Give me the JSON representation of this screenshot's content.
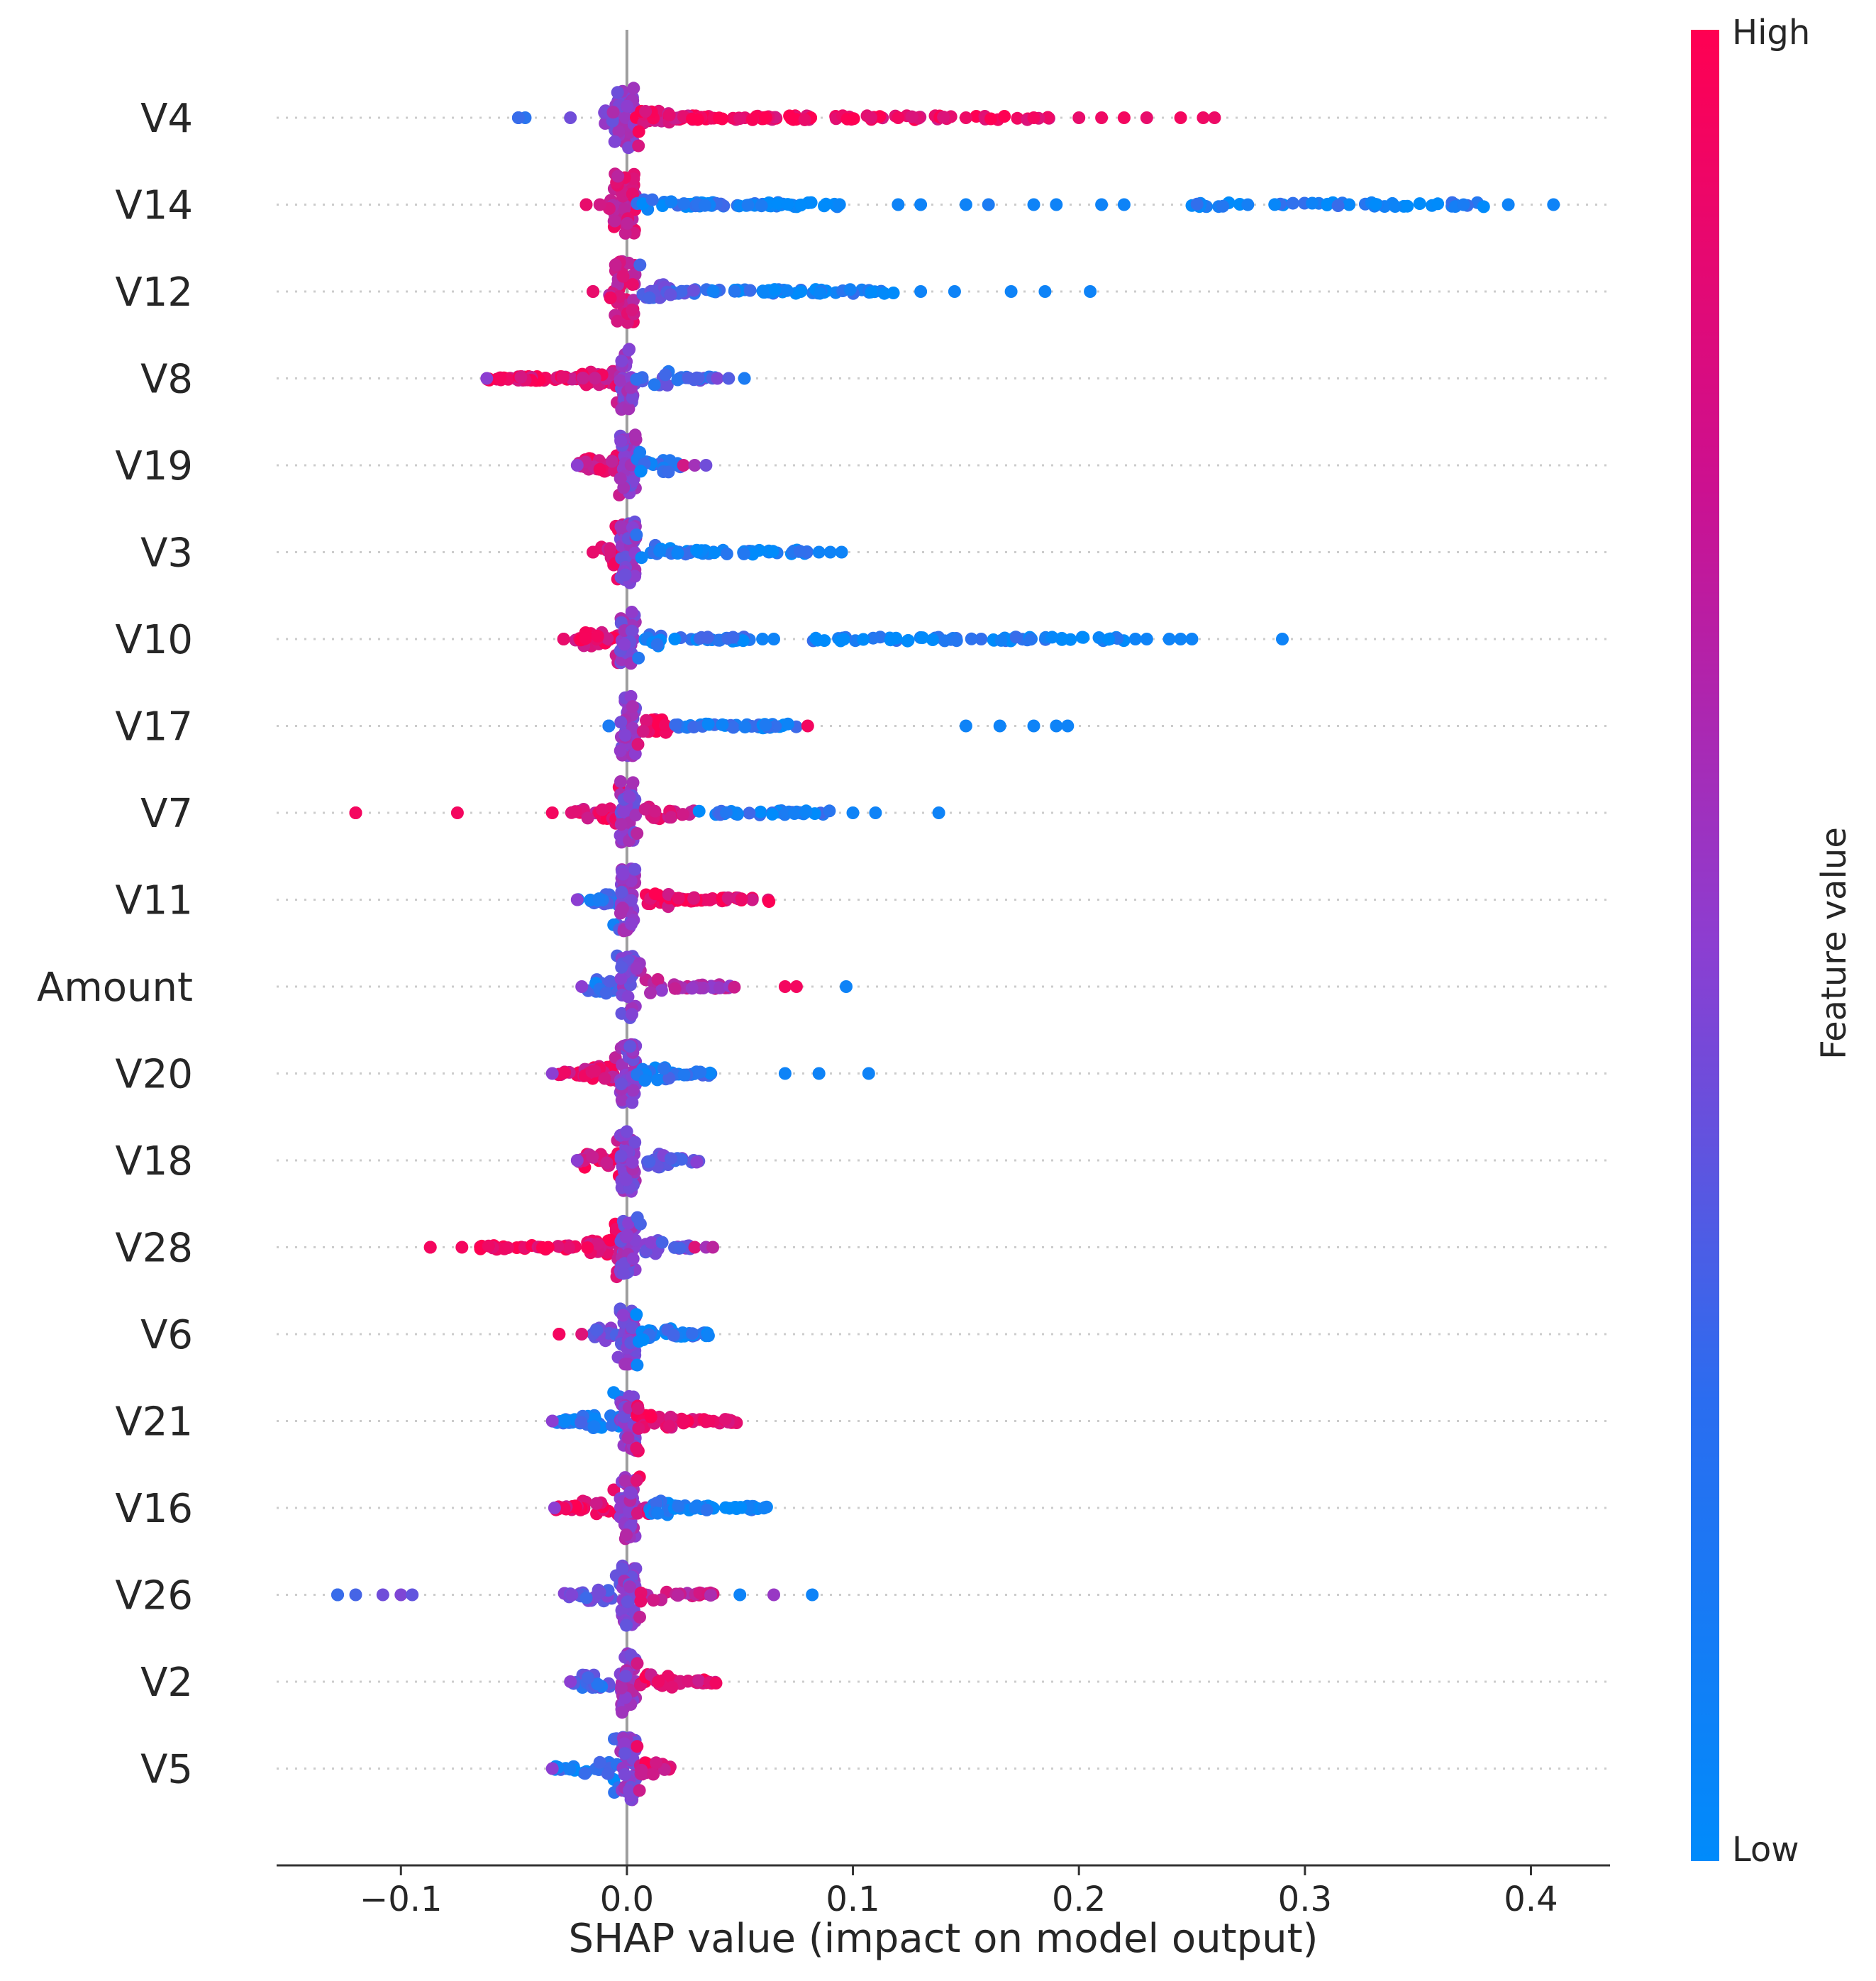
{
  "chart_data": {
    "type": "scatter",
    "subtype": "shap-beeswarm",
    "xlabel": "SHAP value (impact on model output)",
    "xlim": [
      -0.155,
      0.435
    ],
    "xticks": [
      -0.1,
      0.0,
      0.1,
      0.2,
      0.3,
      0.4
    ],
    "xtick_labels": [
      "−0.1",
      "0.0",
      "0.1",
      "0.2",
      "0.3",
      "0.4"
    ],
    "colorbar": {
      "label": "Feature value",
      "high_label": "High",
      "low_label": "Low",
      "high_color": "#ff0052",
      "low_color": "#008bfb"
    },
    "features": [
      {
        "name": "V4",
        "min": -0.048,
        "max": 0.26,
        "far": [
          [
            -0.048,
            0.2
          ],
          [
            -0.045,
            0.15
          ],
          [
            -0.025,
            0.4
          ],
          [
            0.12,
            0.95
          ],
          [
            0.15,
            0.92
          ],
          [
            0.18,
            0.95
          ],
          [
            0.2,
            0.9
          ],
          [
            0.21,
            0.93
          ],
          [
            0.22,
            0.95
          ],
          [
            0.23,
            0.9
          ],
          [
            0.245,
            0.95
          ],
          [
            0.255,
            0.93
          ],
          [
            0.26,
            0.92
          ]
        ],
        "segments": [
          [
            -0.01,
            0.004,
            0.5,
            60
          ],
          [
            0.004,
            0.04,
            0.9,
            45
          ],
          [
            0.04,
            0.1,
            0.95,
            40
          ],
          [
            0.1,
            0.19,
            0.93,
            35
          ]
        ]
      },
      {
        "name": "V14",
        "min": -0.018,
        "max": 0.41,
        "far": [
          [
            -0.018,
            0.9
          ],
          [
            -0.012,
            0.8
          ],
          [
            0.12,
            0.05
          ],
          [
            0.13,
            0.05
          ],
          [
            0.15,
            0.05
          ],
          [
            0.16,
            0.1
          ],
          [
            0.18,
            0.05
          ],
          [
            0.19,
            0.05
          ],
          [
            0.21,
            0.05
          ],
          [
            0.22,
            0.05
          ],
          [
            0.39,
            0.05
          ],
          [
            0.41,
            0.05
          ]
        ],
        "segments": [
          [
            -0.008,
            0.004,
            0.8,
            60
          ],
          [
            0.004,
            0.07,
            0.08,
            55
          ],
          [
            0.07,
            0.1,
            0.05,
            15
          ],
          [
            0.25,
            0.38,
            0.05,
            45
          ]
        ]
      },
      {
        "name": "V12",
        "min": -0.015,
        "max": 0.205,
        "far": [
          [
            -0.015,
            0.9
          ],
          [
            0.13,
            0.05
          ],
          [
            0.145,
            0.05
          ],
          [
            0.17,
            0.05
          ],
          [
            0.185,
            0.05
          ],
          [
            0.205,
            0.05
          ]
        ],
        "segments": [
          [
            -0.008,
            0.004,
            0.8,
            50
          ],
          [
            0.004,
            0.035,
            0.3,
            25
          ],
          [
            0.035,
            0.07,
            0.08,
            25
          ],
          [
            0.07,
            0.12,
            0.05,
            25
          ]
        ]
      },
      {
        "name": "V8",
        "min": -0.062,
        "max": 0.052,
        "far": [
          [
            0.04,
            0.45
          ],
          [
            0.045,
            0.3
          ],
          [
            0.052,
            0.1
          ]
        ],
        "segments": [
          [
            -0.062,
            -0.03,
            0.92,
            40
          ],
          [
            -0.03,
            -0.003,
            0.85,
            40
          ],
          [
            -0.003,
            0.004,
            0.5,
            40
          ],
          [
            0.004,
            0.04,
            0.25,
            25
          ]
        ]
      },
      {
        "name": "V19",
        "min": -0.022,
        "max": 0.037,
        "far": [
          [
            0.025,
            0.8
          ],
          [
            0.03,
            0.6
          ],
          [
            0.035,
            0.4
          ]
        ],
        "segments": [
          [
            -0.022,
            -0.003,
            0.85,
            25
          ],
          [
            -0.003,
            0.004,
            0.5,
            40
          ],
          [
            0.004,
            0.025,
            0.15,
            20
          ]
        ]
      },
      {
        "name": "V3",
        "min": -0.015,
        "max": 0.095,
        "far": [
          [
            -0.015,
            0.9
          ],
          [
            0.085,
            0.05
          ],
          [
            0.09,
            0.05
          ],
          [
            0.095,
            0.05
          ]
        ],
        "segments": [
          [
            -0.012,
            0.0,
            0.85,
            25
          ],
          [
            -0.003,
            0.004,
            0.5,
            40
          ],
          [
            0.004,
            0.08,
            0.08,
            55
          ]
        ]
      },
      {
        "name": "V10",
        "min": -0.028,
        "max": 0.29,
        "far": [
          [
            -0.028,
            0.9
          ],
          [
            0.06,
            0.05
          ],
          [
            0.065,
            0.05
          ],
          [
            0.225,
            0.05
          ],
          [
            0.23,
            0.05
          ],
          [
            0.24,
            0.05
          ],
          [
            0.245,
            0.05
          ],
          [
            0.25,
            0.05
          ],
          [
            0.29,
            0.05
          ]
        ],
        "segments": [
          [
            -0.025,
            -0.003,
            0.9,
            25
          ],
          [
            -0.003,
            0.004,
            0.5,
            40
          ],
          [
            0.004,
            0.055,
            0.1,
            40
          ],
          [
            0.08,
            0.22,
            0.05,
            60
          ]
        ]
      },
      {
        "name": "V17",
        "min": -0.008,
        "max": 0.195,
        "far": [
          [
            -0.008,
            0.1
          ],
          [
            0.08,
            0.95
          ],
          [
            0.15,
            0.05
          ],
          [
            0.165,
            0.05
          ],
          [
            0.18,
            0.05
          ],
          [
            0.19,
            0.05
          ],
          [
            0.195,
            0.05
          ]
        ],
        "segments": [
          [
            -0.003,
            0.004,
            0.5,
            40
          ],
          [
            0.004,
            0.02,
            0.9,
            20
          ],
          [
            0.02,
            0.075,
            0.08,
            40
          ]
        ]
      },
      {
        "name": "V7",
        "min": -0.12,
        "max": 0.138,
        "far": [
          [
            -0.12,
            0.95
          ],
          [
            -0.075,
            0.95
          ],
          [
            -0.033,
            0.95
          ],
          [
            0.1,
            0.05
          ],
          [
            0.11,
            0.05
          ],
          [
            0.138,
            0.05
          ]
        ],
        "segments": [
          [
            -0.025,
            -0.003,
            0.85,
            20
          ],
          [
            -0.003,
            0.004,
            0.5,
            40
          ],
          [
            0.004,
            0.03,
            0.8,
            20
          ],
          [
            0.03,
            0.09,
            0.08,
            40
          ]
        ]
      },
      {
        "name": "V11",
        "min": -0.022,
        "max": 0.063,
        "far": [],
        "segments": [
          [
            -0.022,
            -0.003,
            0.2,
            20
          ],
          [
            -0.003,
            0.004,
            0.5,
            35
          ],
          [
            0.004,
            0.063,
            0.93,
            55
          ]
        ]
      },
      {
        "name": "Amount",
        "min": -0.02,
        "max": 0.097,
        "far": [
          [
            0.07,
            0.95
          ],
          [
            0.075,
            0.95
          ],
          [
            0.097,
            0.05
          ]
        ],
        "segments": [
          [
            -0.02,
            -0.003,
            0.15,
            20
          ],
          [
            -0.003,
            0.004,
            0.45,
            35
          ],
          [
            0.004,
            0.048,
            0.65,
            35
          ]
        ]
      },
      {
        "name": "V20",
        "min": -0.033,
        "max": 0.107,
        "far": [
          [
            0.07,
            0.05
          ],
          [
            0.085,
            0.05
          ],
          [
            0.107,
            0.05
          ]
        ],
        "segments": [
          [
            -0.033,
            -0.003,
            0.85,
            30
          ],
          [
            -0.003,
            0.004,
            0.5,
            40
          ],
          [
            0.004,
            0.038,
            0.15,
            30
          ]
        ]
      },
      {
        "name": "V18",
        "min": -0.022,
        "max": 0.033,
        "far": [],
        "segments": [
          [
            -0.022,
            -0.003,
            0.85,
            20
          ],
          [
            -0.003,
            0.004,
            0.5,
            40
          ],
          [
            0.004,
            0.033,
            0.35,
            25
          ]
        ]
      },
      {
        "name": "V28",
        "min": -0.087,
        "max": 0.038,
        "far": [
          [
            -0.087,
            0.95
          ],
          [
            -0.073,
            0.95
          ],
          [
            0.03,
            0.85
          ],
          [
            0.035,
            0.6
          ],
          [
            0.038,
            0.7
          ]
        ],
        "segments": [
          [
            -0.065,
            -0.04,
            0.93,
            20
          ],
          [
            -0.04,
            -0.003,
            0.9,
            45
          ],
          [
            -0.003,
            0.004,
            0.5,
            40
          ],
          [
            0.004,
            0.028,
            0.4,
            20
          ]
        ]
      },
      {
        "name": "V6",
        "min": -0.03,
        "max": 0.037,
        "far": [
          [
            -0.03,
            0.95
          ],
          [
            -0.02,
            0.85
          ]
        ],
        "segments": [
          [
            -0.017,
            -0.003,
            0.4,
            15
          ],
          [
            -0.003,
            0.004,
            0.45,
            40
          ],
          [
            0.004,
            0.037,
            0.1,
            35
          ]
        ]
      },
      {
        "name": "V21",
        "min": -0.033,
        "max": 0.05,
        "far": [],
        "segments": [
          [
            -0.033,
            -0.003,
            0.12,
            35
          ],
          [
            -0.003,
            0.004,
            0.5,
            40
          ],
          [
            0.004,
            0.05,
            0.93,
            50
          ]
        ]
      },
      {
        "name": "V16",
        "min": -0.032,
        "max": 0.062,
        "far": [],
        "segments": [
          [
            -0.032,
            -0.003,
            0.9,
            30
          ],
          [
            -0.003,
            0.004,
            0.55,
            40
          ],
          [
            0.004,
            0.01,
            0.85,
            10
          ],
          [
            0.01,
            0.062,
            0.06,
            55
          ]
        ]
      },
      {
        "name": "V26",
        "min": -0.128,
        "max": 0.082,
        "far": [
          [
            -0.128,
            0.2
          ],
          [
            -0.12,
            0.25
          ],
          [
            -0.108,
            0.4
          ],
          [
            -0.1,
            0.45
          ],
          [
            -0.095,
            0.35
          ],
          [
            0.05,
            0.05
          ],
          [
            0.065,
            0.55
          ],
          [
            0.082,
            0.05
          ]
        ],
        "segments": [
          [
            -0.03,
            -0.003,
            0.35,
            25
          ],
          [
            -0.003,
            0.004,
            0.5,
            40
          ],
          [
            0.004,
            0.04,
            0.75,
            30
          ]
        ]
      },
      {
        "name": "V2",
        "min": -0.025,
        "max": 0.04,
        "far": [],
        "segments": [
          [
            -0.025,
            -0.003,
            0.25,
            20
          ],
          [
            -0.003,
            0.004,
            0.55,
            40
          ],
          [
            0.004,
            0.04,
            0.9,
            40
          ]
        ]
      },
      {
        "name": "V5",
        "min": -0.033,
        "max": 0.02,
        "far": [],
        "segments": [
          [
            -0.033,
            -0.003,
            0.12,
            30
          ],
          [
            -0.003,
            0.004,
            0.5,
            40
          ],
          [
            0.004,
            0.02,
            0.85,
            20
          ]
        ]
      }
    ]
  }
}
